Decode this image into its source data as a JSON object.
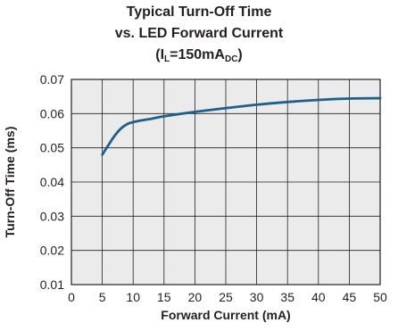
{
  "chart_data": {
    "type": "line",
    "title_line1": "Typical Turn-Off Time",
    "title_line2": "vs. LED Forward Current",
    "title_line3_main": "(I",
    "title_line3_sub1": "L",
    "title_line3_mid": "=150mA",
    "title_line3_sub2": "DC",
    "title_line3_end": ")",
    "xlabel": "Forward Current (mA)",
    "ylabel": "Turn-Off Time (ms)",
    "xlim": [
      0,
      50
    ],
    "ylim": [
      0.01,
      0.07
    ],
    "x_ticks": [
      "0",
      "5",
      "10",
      "15",
      "20",
      "25",
      "30",
      "35",
      "40",
      "45",
      "50"
    ],
    "y_ticks": [
      "0.01",
      "0.02",
      "0.03",
      "0.04",
      "0.05",
      "0.06",
      "0.07"
    ],
    "grid": true,
    "colors": {
      "line": "#1f5f8b",
      "plot_bg": "#ebebeb",
      "grid": "#231f20"
    },
    "series": [
      {
        "x": [
          5,
          6,
          7,
          8,
          9,
          10,
          11,
          12,
          13,
          15,
          20,
          25,
          30,
          35,
          40,
          45,
          50
        ],
        "y": [
          0.048,
          0.0508,
          0.0535,
          0.0556,
          0.0569,
          0.0575,
          0.0579,
          0.0582,
          0.0585,
          0.0592,
          0.0605,
          0.0616,
          0.0626,
          0.0634,
          0.064,
          0.0644,
          0.0645
        ]
      }
    ]
  }
}
